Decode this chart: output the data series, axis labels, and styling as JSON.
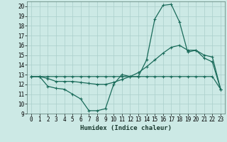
{
  "xlabel": "Humidex (Indice chaleur)",
  "xlim": [
    -0.5,
    23.5
  ],
  "ylim": [
    9,
    20.5
  ],
  "yticks": [
    9,
    10,
    11,
    12,
    13,
    14,
    15,
    16,
    17,
    18,
    19,
    20
  ],
  "xticks": [
    0,
    1,
    2,
    3,
    4,
    5,
    6,
    7,
    8,
    9,
    10,
    11,
    12,
    13,
    14,
    15,
    16,
    17,
    18,
    19,
    20,
    21,
    22,
    23
  ],
  "background_color": "#cce9e5",
  "grid_color": "#aacfcb",
  "line_color": "#1a6b5a",
  "series1": [
    12.8,
    12.8,
    11.8,
    11.6,
    11.5,
    11.0,
    10.5,
    9.3,
    9.3,
    9.5,
    12.0,
    13.0,
    12.8,
    12.8,
    14.5,
    18.7,
    20.1,
    20.2,
    18.4,
    15.3,
    15.5,
    14.7,
    14.3,
    11.5
  ],
  "series2": [
    12.8,
    12.8,
    12.6,
    12.3,
    12.3,
    12.3,
    12.2,
    12.1,
    12.0,
    12.0,
    12.2,
    12.5,
    12.8,
    13.2,
    13.8,
    14.5,
    15.2,
    15.8,
    16.0,
    15.5,
    15.5,
    15.0,
    14.8,
    11.5
  ],
  "series3": [
    12.8,
    12.8,
    12.8,
    12.8,
    12.8,
    12.8,
    12.8,
    12.8,
    12.8,
    12.8,
    12.8,
    12.8,
    12.8,
    12.8,
    12.8,
    12.8,
    12.8,
    12.8,
    12.8,
    12.8,
    12.8,
    12.8,
    12.8,
    11.5
  ],
  "tick_fontsize": 5.5,
  "xlabel_fontsize": 6.5
}
